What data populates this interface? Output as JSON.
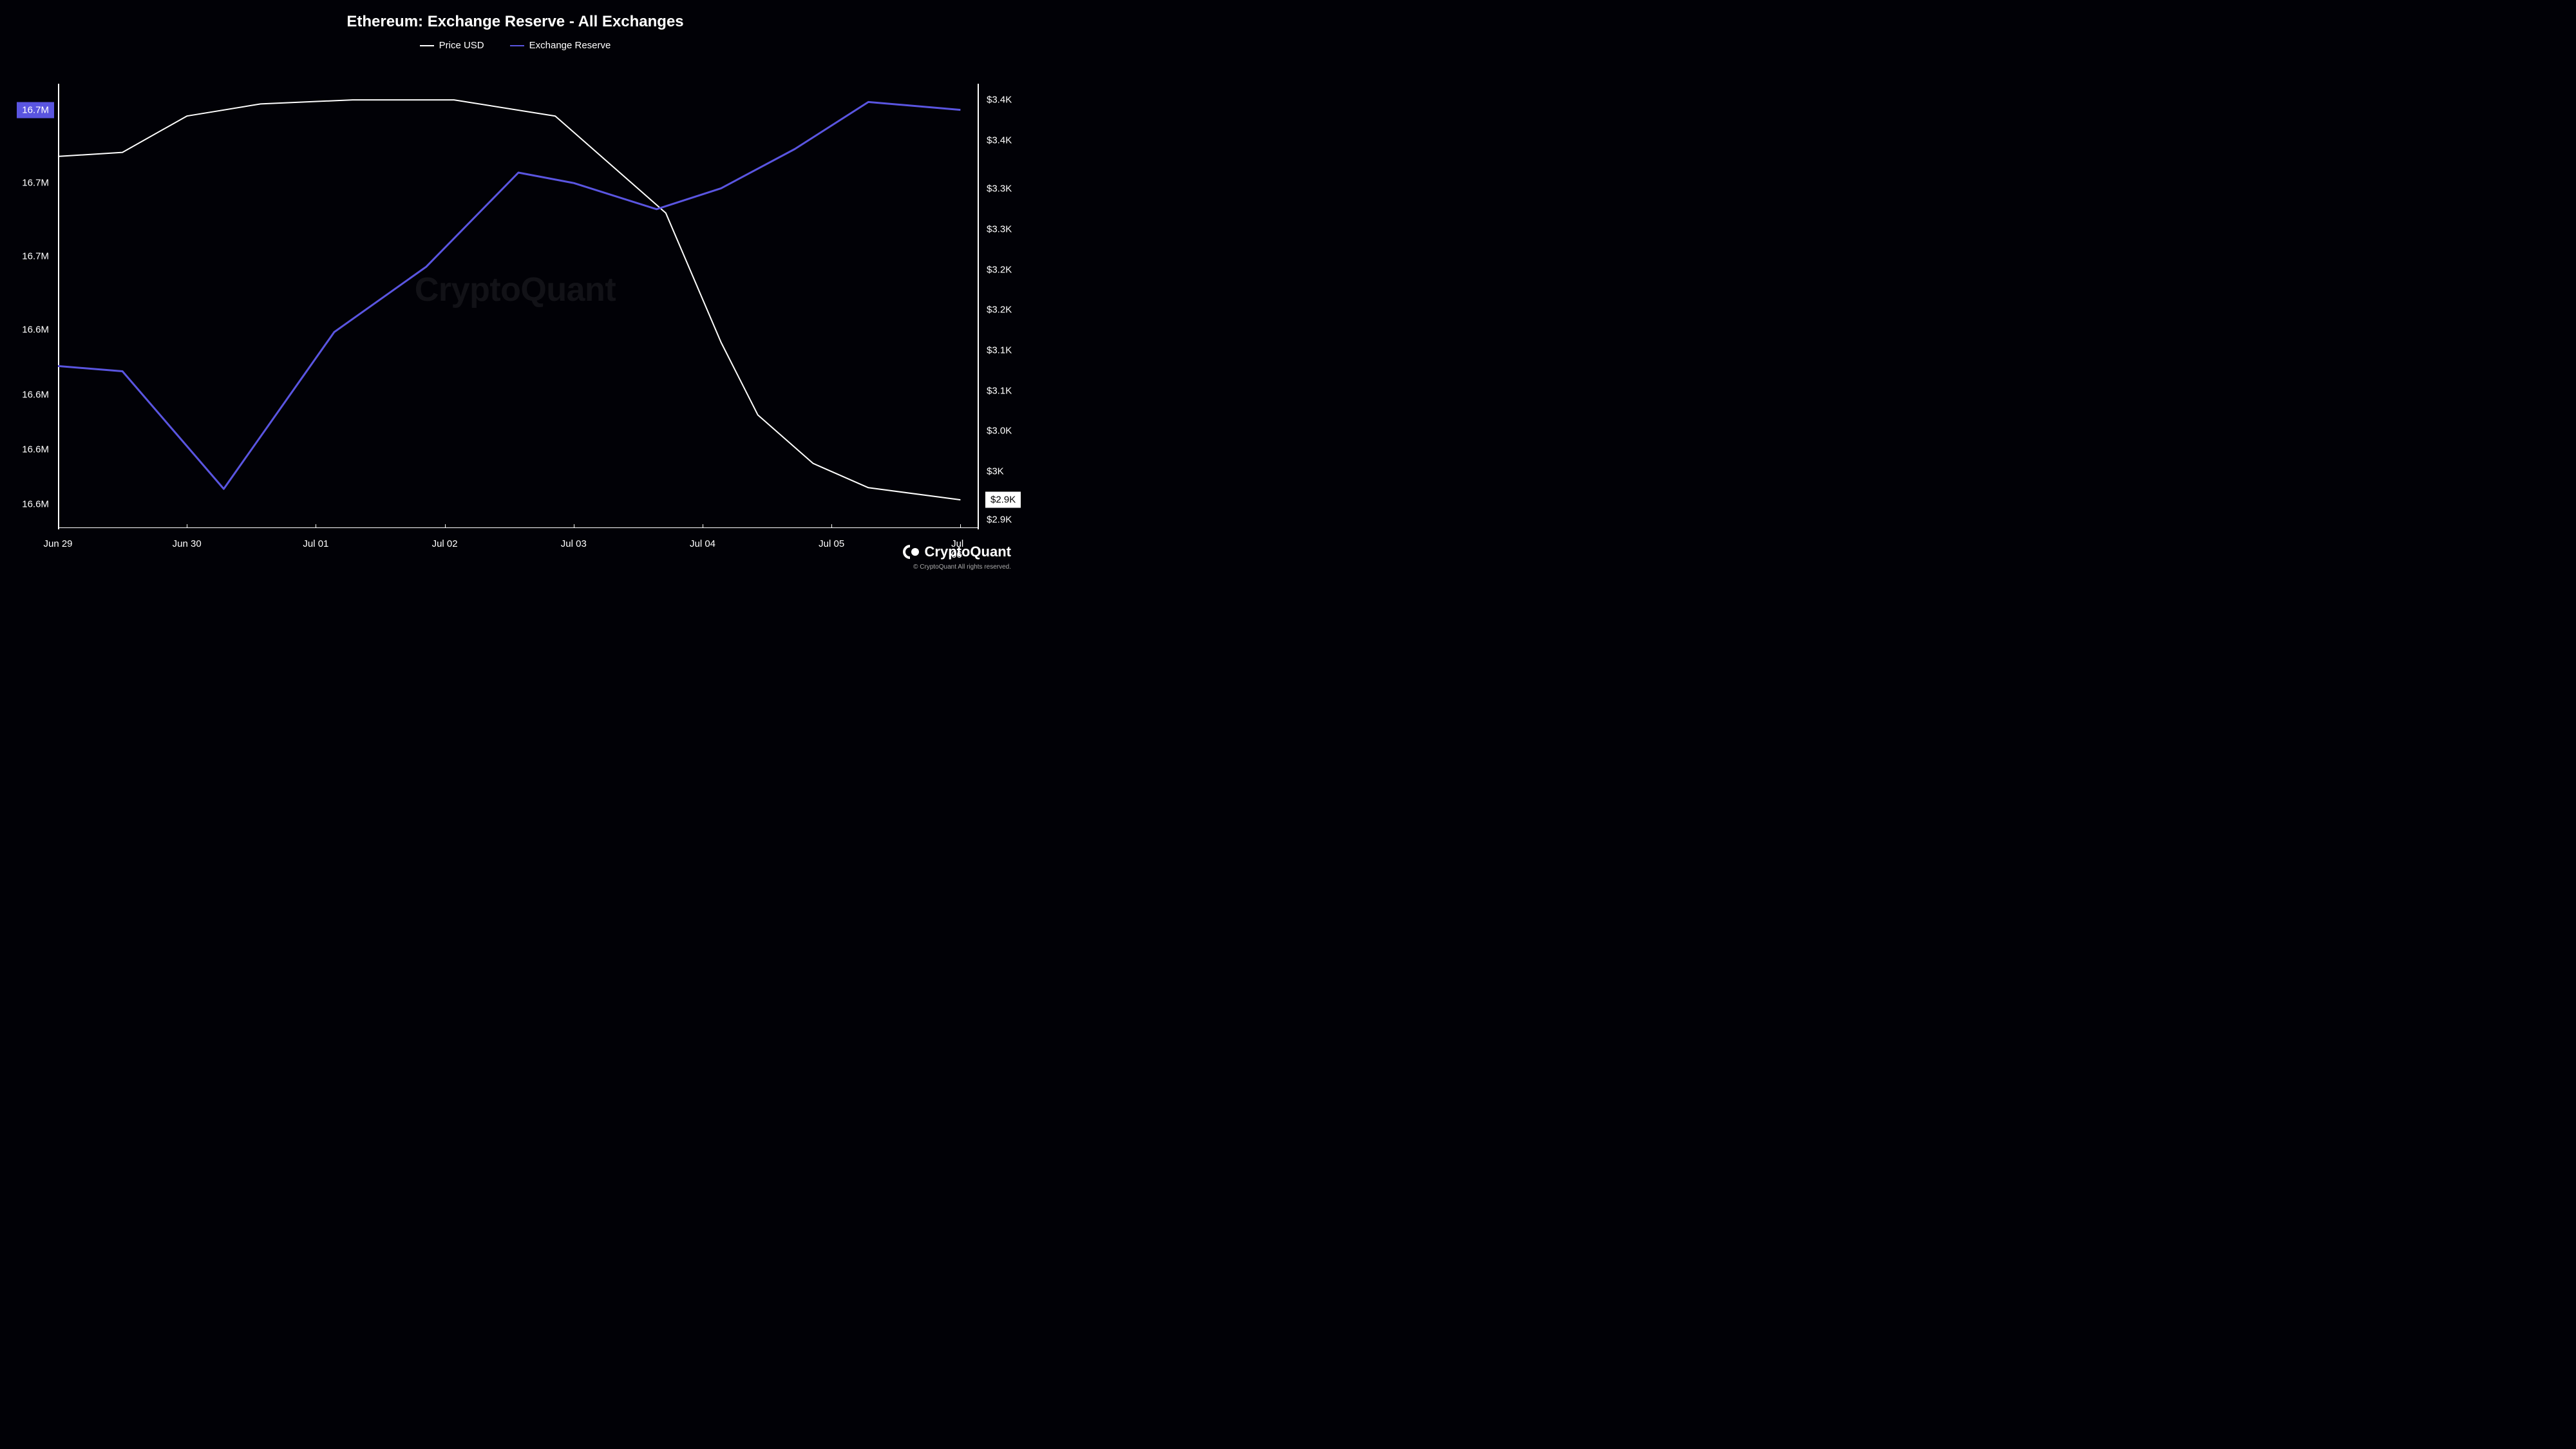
{
  "chart": {
    "type": "line",
    "title": "Ethereum: Exchange Reserve - All Exchanges",
    "background_color": "#010106",
    "text_color": "#ffffff",
    "title_fontsize": 24,
    "tick_fontsize": 15,
    "watermark": "CryptoQuant",
    "watermark_color": "rgba(255,255,255,0.07)",
    "series": [
      {
        "name": "Price USD",
        "axis": "right",
        "color": "#ffffff",
        "line_width": 2,
        "points": [
          {
            "x": 0.0,
            "y": 3350
          },
          {
            "x": 0.07,
            "y": 3355
          },
          {
            "x": 0.14,
            "y": 3400
          },
          {
            "x": 0.22,
            "y": 3415
          },
          {
            "x": 0.32,
            "y": 3420
          },
          {
            "x": 0.43,
            "y": 3420
          },
          {
            "x": 0.54,
            "y": 3400
          },
          {
            "x": 0.62,
            "y": 3320
          },
          {
            "x": 0.66,
            "y": 3280
          },
          {
            "x": 0.72,
            "y": 3120
          },
          {
            "x": 0.76,
            "y": 3030
          },
          {
            "x": 0.82,
            "y": 2970
          },
          {
            "x": 0.88,
            "y": 2940
          },
          {
            "x": 0.98,
            "y": 2925
          }
        ]
      },
      {
        "name": "Exchange Reserve",
        "axis": "left",
        "color": "#5a55e0",
        "line_width": 3,
        "points": [
          {
            "x": 0.0,
            "y": 16.602
          },
          {
            "x": 0.07,
            "y": 16.6
          },
          {
            "x": 0.18,
            "y": 16.555
          },
          {
            "x": 0.3,
            "y": 16.615
          },
          {
            "x": 0.4,
            "y": 16.64
          },
          {
            "x": 0.5,
            "y": 16.676
          },
          {
            "x": 0.56,
            "y": 16.672
          },
          {
            "x": 0.65,
            "y": 16.662
          },
          {
            "x": 0.72,
            "y": 16.67
          },
          {
            "x": 0.8,
            "y": 16.685
          },
          {
            "x": 0.88,
            "y": 16.703
          },
          {
            "x": 0.98,
            "y": 16.7
          }
        ]
      }
    ],
    "left_axis": {
      "min": 16.54,
      "max": 16.71,
      "ticks": [
        {
          "value": 16.7,
          "label": "16.7M"
        },
        {
          "value": 16.672,
          "label": "16.7M"
        },
        {
          "value": 16.644,
          "label": "16.7M"
        },
        {
          "value": 16.616,
          "label": "16.6M"
        },
        {
          "value": 16.591,
          "label": "16.6M"
        },
        {
          "value": 16.57,
          "label": "16.6M"
        },
        {
          "value": 16.549,
          "label": "16.6M"
        }
      ],
      "badge": {
        "value": 16.7,
        "label": "16.7M",
        "bg": "#5a55e0",
        "fg": "#ffffff"
      }
    },
    "right_axis": {
      "min": 2890,
      "max": 3440,
      "ticks": [
        {
          "value": 3420,
          "label": "$3.4K"
        },
        {
          "value": 3370,
          "label": "$3.4K"
        },
        {
          "value": 3310,
          "label": "$3.3K"
        },
        {
          "value": 3260,
          "label": "$3.3K"
        },
        {
          "value": 3210,
          "label": "$3.2K"
        },
        {
          "value": 3160,
          "label": "$3.2K"
        },
        {
          "value": 3110,
          "label": "$3.1K"
        },
        {
          "value": 3060,
          "label": "$3.1K"
        },
        {
          "value": 3010,
          "label": "$3.0K"
        },
        {
          "value": 2960,
          "label": "$3K"
        },
        {
          "value": 2900,
          "label": "$2.9K"
        }
      ],
      "badge": {
        "value": 2925,
        "label": "$2.9K",
        "bg": "#ffffff",
        "fg": "#000000"
      }
    },
    "x_axis": {
      "ticks": [
        {
          "pos": 0.0,
          "label": "Jun 29"
        },
        {
          "pos": 0.14,
          "label": "Jun 30"
        },
        {
          "pos": 0.28,
          "label": "Jul 01"
        },
        {
          "pos": 0.42,
          "label": "Jul 02"
        },
        {
          "pos": 0.56,
          "label": "Jul 03"
        },
        {
          "pos": 0.7,
          "label": "Jul 04"
        },
        {
          "pos": 0.84,
          "label": "Jul 05"
        },
        {
          "pos": 0.98,
          "label": "Jul 06"
        }
      ]
    }
  },
  "brand": {
    "name": "CryptoQuant",
    "copyright": "© CryptoQuant All rights reserved."
  }
}
